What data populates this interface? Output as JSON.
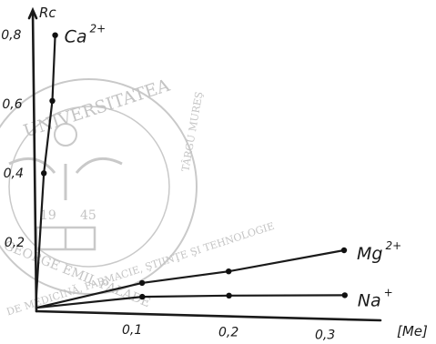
{
  "chart_data": {
    "type": "line",
    "title": "",
    "xlabel": "[Me]",
    "ylabel": "Rc",
    "xlim": [
      0,
      0.35
    ],
    "ylim": [
      0,
      0.85
    ],
    "x_ticks": [
      "0,1",
      "0,2",
      "0,3"
    ],
    "y_ticks": [
      "0,2",
      "0,4",
      "0,6",
      "0,8"
    ],
    "grid": false,
    "legend": "none",
    "series": [
      {
        "name": "Ca",
        "charge": "2+",
        "x": [
          0,
          0.01,
          0.02,
          0.024
        ],
        "y": [
          0.04,
          0.4,
          0.61,
          0.8
        ]
      },
      {
        "name": "Mg",
        "charge": "2+",
        "x": [
          0,
          0.11,
          0.2,
          0.32
        ],
        "y": [
          0.01,
          0.09,
          0.13,
          0.2
        ]
      },
      {
        "name": "Na",
        "charge": "+",
        "x": [
          0,
          0.11,
          0.2,
          0.32
        ],
        "y": [
          0.01,
          0.05,
          0.06,
          0.07
        ]
      }
    ]
  },
  "watermark": {
    "top_text": "UNIVERSITATEA",
    "left_text": "GEORGE EMIL PALADE",
    "right_text": "TÂRGU MUREŞ",
    "bottom_text": "DE MEDICINĂ, FARMACIE, ŞTIINŢE ŞI TEHNOLOGIE",
    "year_left": "19",
    "year_right": "45"
  }
}
